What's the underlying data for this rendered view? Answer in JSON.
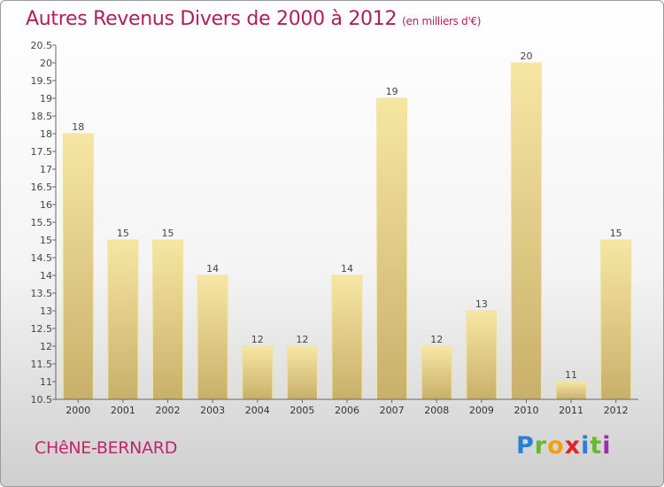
{
  "header": {
    "title": "Autres Revenus Divers de 2000 à 2012",
    "subtitle": "(en milliers d'€)"
  },
  "footer": {
    "commune": "CHêNE-BERNARD",
    "brand": "Proxiti"
  },
  "colors": {
    "title": "#b01e5e",
    "bar_light": "#f6e4a0",
    "bar_dark": "#c9b26a"
  },
  "chart_data": {
    "type": "bar",
    "title": "Autres Revenus Divers de 2000 à 2012",
    "subtitle": "(en milliers d'€)",
    "categories": [
      "2000",
      "2001",
      "2002",
      "2003",
      "2004",
      "2005",
      "2006",
      "2007",
      "2008",
      "2009",
      "2010",
      "2011",
      "2012"
    ],
    "values": [
      18,
      15,
      15,
      14,
      12,
      12,
      14,
      19,
      12,
      13,
      20,
      11,
      15
    ],
    "value_labels": [
      "18",
      "15",
      "15",
      "14",
      "12",
      "12",
      "14",
      "19",
      "12",
      "13",
      "20",
      "11",
      "15"
    ],
    "ylim": [
      10.5,
      20.5
    ],
    "yticks": [
      10.5,
      11,
      11.5,
      12,
      12.5,
      13,
      13.5,
      14,
      14.5,
      15,
      15.5,
      16,
      16.5,
      17,
      17.5,
      18,
      18.5,
      19,
      19.5,
      20,
      20.5
    ],
    "ytick_labels": [
      "10.5",
      "11",
      "11.5",
      "12",
      "12.5",
      "13",
      "13.5",
      "14",
      "14.5",
      "15",
      "15.5",
      "16",
      "16.5",
      "17",
      "17.5",
      "18",
      "18.5",
      "19",
      "19.5",
      "20",
      "20.5"
    ],
    "grid": false,
    "xlabel": "",
    "ylabel": ""
  }
}
